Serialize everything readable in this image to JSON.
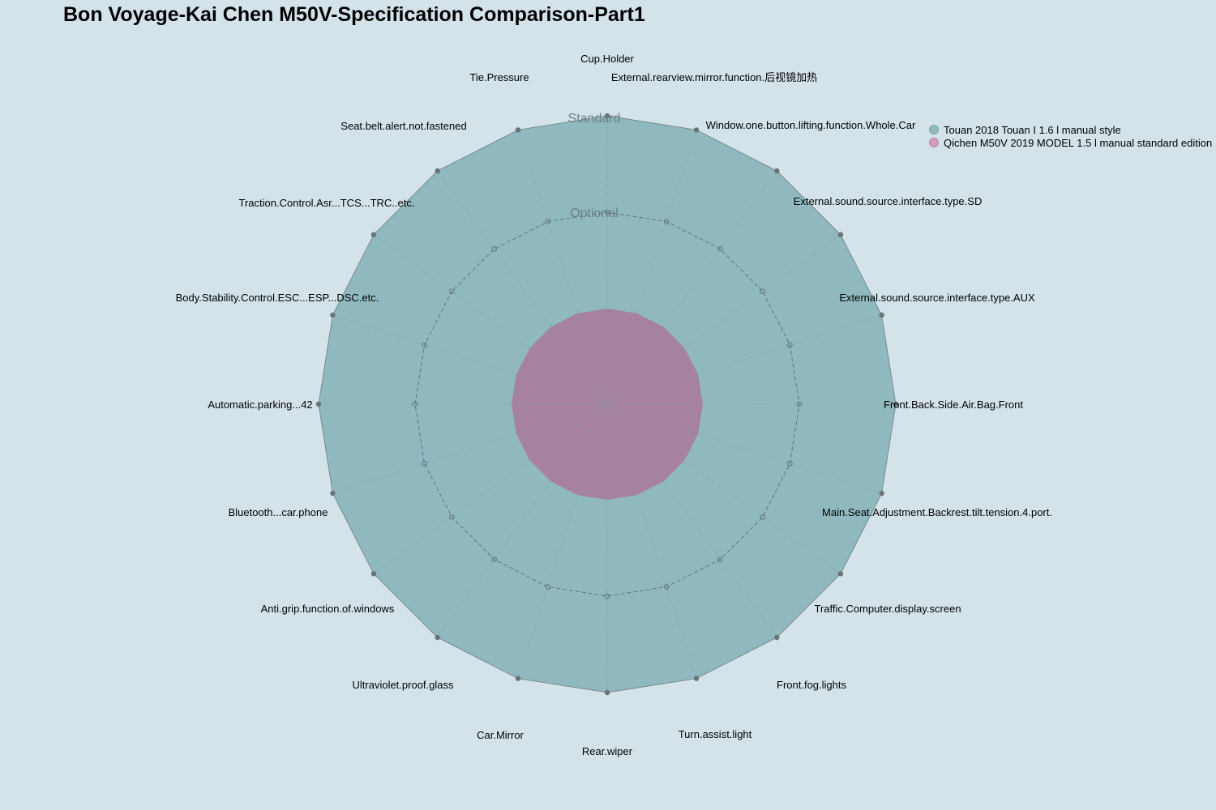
{
  "chart_data": {
    "type": "radar",
    "title": "Bon Voyage-Kai Chen M50V-Specification Comparison-Part1",
    "axes": [
      "Cup.Holder",
      "External.rearview.mirror.function.后视镜加热",
      "Window.one.button.lifting.function.Whole.Car",
      "External.sound.source.interface.type.SD",
      "External.sound.source.interface.type.AUX",
      "Front.Back.Side.Air.Bag.Front",
      "Main.Seat.Adjustment.Backrest.tilt.tension.4.port.",
      "Traffic.Computer.display.screen",
      "Front.fog.lights",
      "Turn.assist.light",
      "Rear.wiper",
      "Car.Mirror",
      "Ultraviolet.proof.glass",
      "Anti.grip.function.of.windows",
      "Bluetooth...car.phone",
      "Automatic.parking...42",
      "Body.Stability.Control.ESC...ESP...DSC.etc.",
      "Traction.Control.Asr...TCS...TRC..etc.",
      "Seat.belt.alert.not.fastened",
      "Tie.Pressure"
    ],
    "levels": [
      "",
      "Optional",
      "Standard"
    ],
    "series": [
      {
        "name": "Touan 2018 Touan I 1.6 l manual style",
        "color": "#8fb9be",
        "values": [
          "Standard",
          "Standard",
          "Standard",
          "Standard",
          "Standard",
          "Standard",
          "Standard",
          "Standard",
          "Standard",
          "Standard",
          "Standard",
          "Standard",
          "Standard",
          "Standard",
          "Standard",
          "Standard",
          "Standard",
          "Standard",
          "Standard",
          "Standard"
        ]
      },
      {
        "name": "Qichen M50V 2019 MODEL 1.5 l manual standard edition",
        "color": "#c98fb5",
        "values": [
          "",
          "",
          "",
          "",
          "",
          "",
          "",
          "",
          "",
          "",
          "",
          "",
          "",
          "",
          "",
          "",
          "",
          "",
          "",
          ""
        ]
      }
    ],
    "legend_position": "top-right"
  },
  "colors": {
    "background": "#d4e3ea",
    "series1_fill": "#8fb9be",
    "series2_fill": "#a7829f",
    "outline": "#6e7c7e",
    "level_label": "#6d7f82"
  }
}
